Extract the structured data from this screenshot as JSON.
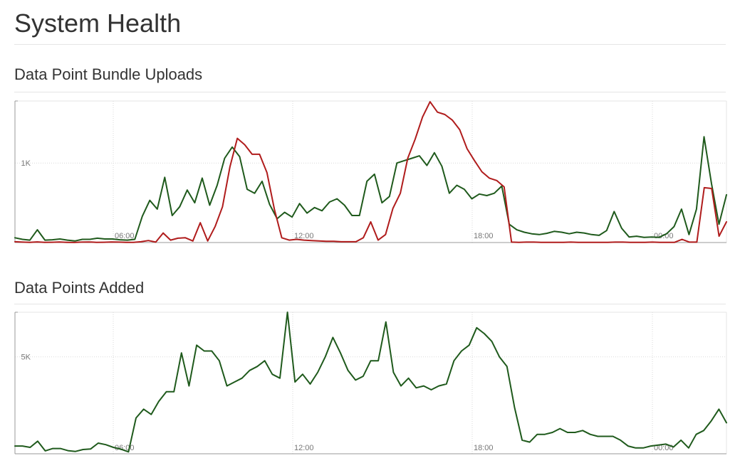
{
  "page": {
    "title": "System Health"
  },
  "colors": {
    "green": "#1f5a1c",
    "red": "#b01c1c",
    "grid": "#d9d9d9",
    "axis": "#999999",
    "text": "#777777"
  },
  "sections": [
    {
      "title": "Data Point Bundle Uploads"
    },
    {
      "title": "Data Points Added"
    }
  ],
  "chart_data": [
    {
      "type": "line",
      "title": "Data Point Bundle Uploads",
      "x_ticks": [
        "06:00",
        "12:00",
        "18:00",
        "00:00"
      ],
      "y_ticks": [
        "1K"
      ],
      "ylim": [
        0,
        1780
      ],
      "grid": true,
      "series": [
        {
          "color": "#1f5a1c",
          "values": [
            60,
            40,
            30,
            160,
            30,
            35,
            45,
            30,
            20,
            40,
            40,
            55,
            45,
            45,
            35,
            30,
            40,
            330,
            530,
            420,
            820,
            340,
            450,
            660,
            500,
            810,
            470,
            720,
            1060,
            1200,
            1080,
            670,
            620,
            770,
            480,
            300,
            380,
            320,
            490,
            370,
            440,
            400,
            510,
            550,
            470,
            340,
            340,
            770,
            860,
            500,
            580,
            1000,
            1030,
            1060,
            1090,
            970,
            1130,
            960,
            620,
            720,
            670,
            550,
            610,
            590,
            620,
            710,
            230,
            160,
            130,
            110,
            100,
            115,
            140,
            130,
            110,
            130,
            120,
            100,
            90,
            150,
            390,
            180,
            70,
            80,
            65,
            70,
            65,
            110,
            200,
            420,
            100,
            420,
            1330,
            740,
            230,
            600
          ]
        },
        {
          "color": "#b01c1c",
          "values": [
            10,
            5,
            3,
            8,
            2,
            4,
            6,
            3,
            1,
            5,
            7,
            3,
            4,
            6,
            5,
            2,
            3,
            10,
            25,
            5,
            120,
            30,
            55,
            60,
            20,
            250,
            20,
            200,
            450,
            950,
            1310,
            1230,
            1110,
            1110,
            880,
            420,
            60,
            30,
            40,
            30,
            25,
            20,
            15,
            15,
            10,
            10,
            10,
            60,
            260,
            30,
            100,
            430,
            620,
            1060,
            1300,
            1580,
            1770,
            1640,
            1610,
            1540,
            1420,
            1180,
            1030,
            890,
            810,
            780,
            700,
            5,
            3,
            5,
            5,
            3,
            3,
            3,
            3,
            5,
            3,
            3,
            3,
            3,
            3,
            5,
            5,
            3,
            3,
            3,
            5,
            3,
            3,
            3,
            40,
            5,
            5,
            690,
            680,
            80,
            260
          ]
        }
      ]
    },
    {
      "type": "line",
      "title": "Data Points Added",
      "x_ticks": [
        "06:00",
        "12:00",
        "18:00",
        "00:00"
      ],
      "y_ticks": [
        "5K"
      ],
      "ylim": [
        0,
        7300
      ],
      "grid": true,
      "series": [
        {
          "color": "#1f5a1c",
          "values": [
            400,
            400,
            330,
            650,
            150,
            270,
            270,
            160,
            120,
            220,
            250,
            550,
            470,
            330,
            240,
            100,
            1850,
            2300,
            2030,
            2700,
            3200,
            3200,
            5200,
            3500,
            5600,
            5300,
            5300,
            4800,
            3500,
            3700,
            3900,
            4300,
            4500,
            4800,
            4100,
            3900,
            7300,
            3700,
            4100,
            3600,
            4200,
            5000,
            6000,
            5200,
            4300,
            3800,
            4000,
            4800,
            4800,
            6800,
            4200,
            3500,
            3900,
            3400,
            3500,
            3300,
            3500,
            3600,
            4800,
            5300,
            5600,
            6500,
            6200,
            5800,
            5000,
            4500,
            2400,
            700,
            600,
            1000,
            1000,
            1100,
            1300,
            1100,
            1100,
            1200,
            1000,
            900,
            900,
            900,
            700,
            400,
            300,
            300,
            400,
            450,
            500,
            350,
            700,
            300,
            1000,
            1200,
            1700,
            2300,
            1600
          ]
        }
      ]
    }
  ]
}
